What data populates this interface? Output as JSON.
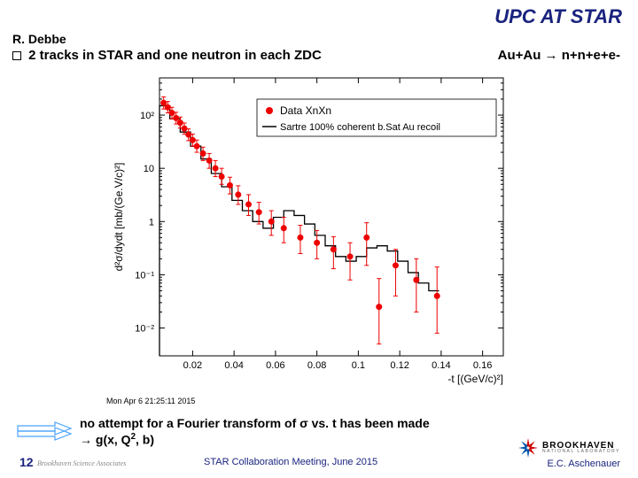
{
  "title": "UPC AT STAR",
  "author": "R. Debbe",
  "subtitle": "2 tracks in STAR and one neutron in each ZDC",
  "reaction": "Au+Au → n+n+e+e-",
  "chart": {
    "type": "scatter_with_histogram_overlay",
    "ylabel": "d²σ/dydt [mb/(Ge.V/c)²]",
    "xlabel": "-t [(GeV/c)²]",
    "yscale": "log",
    "ylim": [
      0.003,
      500
    ],
    "xlim": [
      0.004,
      0.17
    ],
    "yticks": [
      0.01,
      0.1,
      1,
      10,
      100
    ],
    "ytick_labels": [
      "10⁻²",
      "10⁻¹",
      "1",
      "10",
      "10²"
    ],
    "xticks": [
      0.02,
      0.04,
      0.06,
      0.08,
      0.1,
      0.12,
      0.14,
      0.16
    ],
    "xtick_labels": [
      "0.02",
      "0.04",
      "0.06",
      "0.08",
      "0.1",
      "0.12",
      "0.14",
      "0.16"
    ],
    "legend": {
      "data_label": "Data  XnXn",
      "data_marker_color": "#ee0000",
      "model_label": "Sartre 100% coherent b.Sat Au recoil",
      "model_line_color": "#000000"
    },
    "model_bins": {
      "bin_width": 0.005,
      "x_left": [
        0.004,
        0.009,
        0.014,
        0.019,
        0.024,
        0.029,
        0.034,
        0.039,
        0.044,
        0.049,
        0.054,
        0.059,
        0.064,
        0.069,
        0.074,
        0.079,
        0.084,
        0.089,
        0.094,
        0.099,
        0.104,
        0.109,
        0.114,
        0.119,
        0.124,
        0.129,
        0.134
      ],
      "y": [
        150,
        85,
        48,
        26,
        15,
        8,
        4.5,
        2.5,
        1.6,
        1.0,
        0.75,
        1.2,
        1.6,
        1.3,
        0.9,
        0.55,
        0.35,
        0.22,
        0.18,
        0.22,
        0.32,
        0.35,
        0.28,
        0.18,
        0.11,
        0.07,
        0.05
      ]
    },
    "data_points": {
      "x": [
        0.006,
        0.008,
        0.01,
        0.012,
        0.014,
        0.016,
        0.018,
        0.02,
        0.022,
        0.025,
        0.028,
        0.031,
        0.034,
        0.038,
        0.042,
        0.047,
        0.052,
        0.058,
        0.064,
        0.072,
        0.08,
        0.088,
        0.096,
        0.104,
        0.11,
        0.118,
        0.128,
        0.138
      ],
      "y": [
        170,
        140,
        110,
        88,
        72,
        56,
        43,
        34,
        26,
        19,
        14,
        10,
        7,
        4.8,
        3.2,
        2.1,
        1.5,
        1.0,
        0.75,
        0.5,
        0.4,
        0.3,
        0.22,
        0.5,
        0.025,
        0.15,
        0.08,
        0.04
      ],
      "yerr_lo": [
        40,
        30,
        25,
        20,
        15,
        12,
        10,
        8,
        6,
        5,
        4,
        3,
        2,
        1.5,
        1.1,
        0.8,
        0.6,
        0.45,
        0.35,
        0.25,
        0.2,
        0.17,
        0.14,
        0.35,
        0.02,
        0.11,
        0.06,
        0.032
      ],
      "yerr_hi": [
        50,
        40,
        30,
        25,
        20,
        15,
        12,
        10,
        8,
        6,
        5,
        4,
        3,
        2,
        1.5,
        1.1,
        0.8,
        0.6,
        0.45,
        0.35,
        0.28,
        0.22,
        0.18,
        0.45,
        0.06,
        0.15,
        0.12,
        0.1
      ]
    },
    "marker_size": 3.5,
    "marker_color": "#ee0000",
    "axis_color": "#000000",
    "tick_fontsize": 11,
    "label_fontsize": 12,
    "background_color": "#ffffff"
  },
  "timestamp": "Mon Apr 6 21:25:11 2015",
  "fourier_text": "no attempt for a Fourier transform of σ vs. t has been made",
  "fourier_gx": "→ g(x, Q², b)",
  "page_num": "12",
  "footer_meeting": "STAR Collaboration Meeting, June 2015",
  "footer_name": "E.C. Aschenauer",
  "bnl": {
    "brook": "BROOKHAVEN",
    "natl": "NATIONAL LABORATORY"
  },
  "bsa": "Brookhaven Science Associates"
}
